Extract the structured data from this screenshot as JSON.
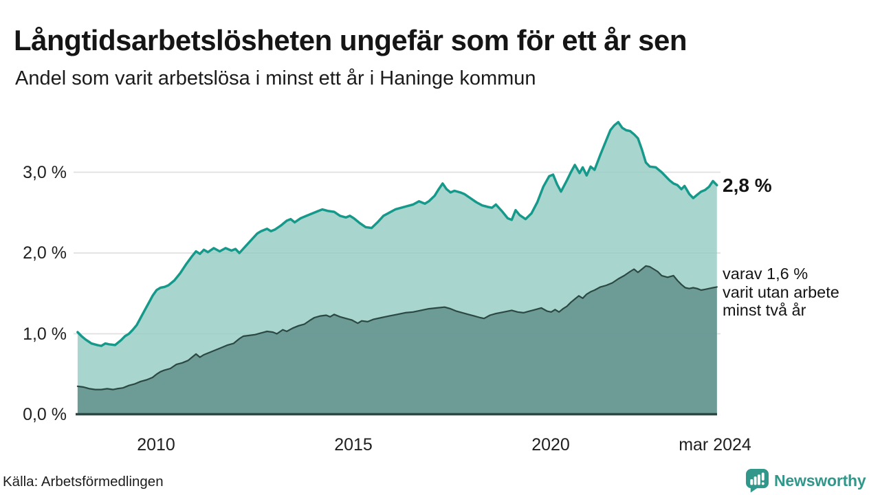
{
  "header": {
    "title": "Långtidsarbetslösheten ungefär som för ett år sen",
    "subtitle": "Andel som varit arbetslösa i minst ett år i Haninge kommun"
  },
  "chart_data": {
    "type": "area",
    "title": "Långtidsarbetslösheten ungefär som för ett år sen",
    "subtitle": "Andel som varit arbetslösa i minst ett år i Haninge kommun",
    "unit": "%",
    "x_range": [
      2008.0,
      2024.2
    ],
    "y_range": [
      0,
      3.7
    ],
    "grid": "horizontal",
    "legend_position": "none",
    "y_axis": {
      "gridline_values": [
        1,
        2,
        3
      ],
      "ticks": [
        {
          "value": 3,
          "label": "3,0 %"
        },
        {
          "value": 2,
          "label": "2,0 %"
        },
        {
          "value": 1,
          "label": "1,0 %"
        },
        {
          "value": 0,
          "label": "0,0 %"
        }
      ]
    },
    "x_axis": {
      "ticks": [
        {
          "year": 2010,
          "label": "2010"
        },
        {
          "year": 2015,
          "label": "2015"
        },
        {
          "year": 2020,
          "label": "2020"
        },
        {
          "year": 2024.2,
          "label": "mar 2024"
        }
      ]
    },
    "annotations": {
      "end_label": "2,8 %",
      "secondary_lines": [
        "varav 1,6 %",
        "varit utan arbete",
        "minst två år"
      ]
    },
    "colors": {
      "line_1yr": "#16998a",
      "area_1yr": "rgba(146,204,194,0.8)",
      "line_2yr": "#2c4843",
      "area_2yr": "rgba(99,145,140,0.85)",
      "baseline": "#2c4843",
      "gridline": "#dfdfdf"
    },
    "series": [
      {
        "name": "arbetslösa minst ett år",
        "end_value_label": "2,8 %",
        "line_color": "#16998a",
        "area_color": "rgba(146,204,194,0.8)",
        "line_width": 3.5,
        "points": [
          [
            2008.0,
            1.02
          ],
          [
            2008.1,
            0.97
          ],
          [
            2008.2,
            0.93
          ],
          [
            2008.35,
            0.88
          ],
          [
            2008.5,
            0.86
          ],
          [
            2008.6,
            0.85
          ],
          [
            2008.7,
            0.88
          ],
          [
            2008.8,
            0.87
          ],
          [
            2008.95,
            0.86
          ],
          [
            2009.1,
            0.92
          ],
          [
            2009.2,
            0.97
          ],
          [
            2009.3,
            1.0
          ],
          [
            2009.4,
            1.05
          ],
          [
            2009.5,
            1.11
          ],
          [
            2009.6,
            1.2
          ],
          [
            2009.7,
            1.29
          ],
          [
            2009.8,
            1.38
          ],
          [
            2009.9,
            1.47
          ],
          [
            2010.0,
            1.54
          ],
          [
            2010.1,
            1.57
          ],
          [
            2010.2,
            1.58
          ],
          [
            2010.3,
            1.6
          ],
          [
            2010.45,
            1.66
          ],
          [
            2010.6,
            1.75
          ],
          [
            2010.75,
            1.86
          ],
          [
            2010.9,
            1.96
          ],
          [
            2011.0,
            2.02
          ],
          [
            2011.1,
            1.99
          ],
          [
            2011.2,
            2.04
          ],
          [
            2011.3,
            2.01
          ],
          [
            2011.45,
            2.06
          ],
          [
            2011.6,
            2.02
          ],
          [
            2011.75,
            2.06
          ],
          [
            2011.9,
            2.03
          ],
          [
            2012.0,
            2.05
          ],
          [
            2012.1,
            2.0
          ],
          [
            2012.25,
            2.08
          ],
          [
            2012.4,
            2.16
          ],
          [
            2012.55,
            2.24
          ],
          [
            2012.65,
            2.27
          ],
          [
            2012.8,
            2.3
          ],
          [
            2012.9,
            2.27
          ],
          [
            2013.0,
            2.29
          ],
          [
            2013.15,
            2.34
          ],
          [
            2013.3,
            2.4
          ],
          [
            2013.4,
            2.42
          ],
          [
            2013.5,
            2.38
          ],
          [
            2013.65,
            2.43
          ],
          [
            2013.8,
            2.46
          ],
          [
            2013.95,
            2.49
          ],
          [
            2014.1,
            2.52
          ],
          [
            2014.2,
            2.54
          ],
          [
            2014.35,
            2.52
          ],
          [
            2014.5,
            2.51
          ],
          [
            2014.65,
            2.46
          ],
          [
            2014.8,
            2.44
          ],
          [
            2014.9,
            2.46
          ],
          [
            2015.0,
            2.43
          ],
          [
            2015.15,
            2.37
          ],
          [
            2015.3,
            2.32
          ],
          [
            2015.45,
            2.31
          ],
          [
            2015.6,
            2.38
          ],
          [
            2015.75,
            2.46
          ],
          [
            2015.9,
            2.5
          ],
          [
            2016.05,
            2.54
          ],
          [
            2016.2,
            2.56
          ],
          [
            2016.35,
            2.58
          ],
          [
            2016.5,
            2.6
          ],
          [
            2016.65,
            2.64
          ],
          [
            2016.8,
            2.61
          ],
          [
            2016.9,
            2.64
          ],
          [
            2017.05,
            2.71
          ],
          [
            2017.15,
            2.79
          ],
          [
            2017.25,
            2.86
          ],
          [
            2017.35,
            2.79
          ],
          [
            2017.45,
            2.75
          ],
          [
            2017.55,
            2.77
          ],
          [
            2017.7,
            2.75
          ],
          [
            2017.8,
            2.73
          ],
          [
            2017.95,
            2.68
          ],
          [
            2018.1,
            2.63
          ],
          [
            2018.25,
            2.59
          ],
          [
            2018.4,
            2.57
          ],
          [
            2018.5,
            2.56
          ],
          [
            2018.6,
            2.6
          ],
          [
            2018.75,
            2.52
          ],
          [
            2018.9,
            2.43
          ],
          [
            2019.0,
            2.41
          ],
          [
            2019.1,
            2.53
          ],
          [
            2019.2,
            2.47
          ],
          [
            2019.35,
            2.42
          ],
          [
            2019.5,
            2.49
          ],
          [
            2019.65,
            2.63
          ],
          [
            2019.8,
            2.82
          ],
          [
            2019.95,
            2.95
          ],
          [
            2020.05,
            2.97
          ],
          [
            2020.15,
            2.85
          ],
          [
            2020.25,
            2.76
          ],
          [
            2020.4,
            2.9
          ],
          [
            2020.5,
            3.0
          ],
          [
            2020.6,
            3.09
          ],
          [
            2020.72,
            2.99
          ],
          [
            2020.8,
            3.06
          ],
          [
            2020.9,
            2.96
          ],
          [
            2021.0,
            3.07
          ],
          [
            2021.1,
            3.03
          ],
          [
            2021.25,
            3.22
          ],
          [
            2021.4,
            3.4
          ],
          [
            2021.5,
            3.52
          ],
          [
            2021.6,
            3.58
          ],
          [
            2021.7,
            3.62
          ],
          [
            2021.8,
            3.55
          ],
          [
            2021.9,
            3.52
          ],
          [
            2022.0,
            3.51
          ],
          [
            2022.1,
            3.47
          ],
          [
            2022.2,
            3.42
          ],
          [
            2022.3,
            3.28
          ],
          [
            2022.4,
            3.12
          ],
          [
            2022.5,
            3.07
          ],
          [
            2022.65,
            3.06
          ],
          [
            2022.8,
            3.0
          ],
          [
            2022.9,
            2.95
          ],
          [
            2023.0,
            2.9
          ],
          [
            2023.1,
            2.86
          ],
          [
            2023.2,
            2.84
          ],
          [
            2023.3,
            2.79
          ],
          [
            2023.38,
            2.83
          ],
          [
            2023.5,
            2.73
          ],
          [
            2023.6,
            2.68
          ],
          [
            2023.7,
            2.72
          ],
          [
            2023.8,
            2.76
          ],
          [
            2023.9,
            2.78
          ],
          [
            2024.0,
            2.82
          ],
          [
            2024.1,
            2.89
          ],
          [
            2024.2,
            2.84
          ]
        ]
      },
      {
        "name": "varav arbetslösa minst två år",
        "end_value_label": "1,6 %",
        "line_color": "#2c4843",
        "area_color": "rgba(99,145,140,0.85)",
        "line_width": 2.2,
        "points": [
          [
            2008.0,
            0.35
          ],
          [
            2008.15,
            0.34
          ],
          [
            2008.3,
            0.32
          ],
          [
            2008.45,
            0.31
          ],
          [
            2008.6,
            0.31
          ],
          [
            2008.75,
            0.32
          ],
          [
            2008.9,
            0.31
          ],
          [
            2009.0,
            0.32
          ],
          [
            2009.15,
            0.33
          ],
          [
            2009.3,
            0.36
          ],
          [
            2009.45,
            0.38
          ],
          [
            2009.6,
            0.41
          ],
          [
            2009.75,
            0.43
          ],
          [
            2009.9,
            0.46
          ],
          [
            2010.0,
            0.5
          ],
          [
            2010.1,
            0.53
          ],
          [
            2010.2,
            0.55
          ],
          [
            2010.35,
            0.57
          ],
          [
            2010.5,
            0.62
          ],
          [
            2010.65,
            0.64
          ],
          [
            2010.8,
            0.67
          ],
          [
            2010.9,
            0.71
          ],
          [
            2011.0,
            0.75
          ],
          [
            2011.1,
            0.71
          ],
          [
            2011.2,
            0.74
          ],
          [
            2011.35,
            0.77
          ],
          [
            2011.5,
            0.8
          ],
          [
            2011.65,
            0.83
          ],
          [
            2011.8,
            0.86
          ],
          [
            2011.95,
            0.88
          ],
          [
            2012.1,
            0.94
          ],
          [
            2012.2,
            0.97
          ],
          [
            2012.35,
            0.98
          ],
          [
            2012.5,
            0.99
          ],
          [
            2012.65,
            1.01
          ],
          [
            2012.8,
            1.03
          ],
          [
            2012.95,
            1.02
          ],
          [
            2013.05,
            1.0
          ],
          [
            2013.2,
            1.05
          ],
          [
            2013.3,
            1.03
          ],
          [
            2013.45,
            1.07
          ],
          [
            2013.6,
            1.1
          ],
          [
            2013.75,
            1.12
          ],
          [
            2013.9,
            1.17
          ],
          [
            2014.0,
            1.2
          ],
          [
            2014.15,
            1.22
          ],
          [
            2014.3,
            1.23
          ],
          [
            2014.4,
            1.21
          ],
          [
            2014.5,
            1.24
          ],
          [
            2014.65,
            1.21
          ],
          [
            2014.8,
            1.19
          ],
          [
            2014.95,
            1.17
          ],
          [
            2015.1,
            1.13
          ],
          [
            2015.2,
            1.16
          ],
          [
            2015.35,
            1.15
          ],
          [
            2015.5,
            1.18
          ],
          [
            2015.7,
            1.2
          ],
          [
            2015.9,
            1.22
          ],
          [
            2016.1,
            1.24
          ],
          [
            2016.3,
            1.26
          ],
          [
            2016.5,
            1.27
          ],
          [
            2016.7,
            1.29
          ],
          [
            2016.9,
            1.31
          ],
          [
            2017.1,
            1.32
          ],
          [
            2017.3,
            1.33
          ],
          [
            2017.45,
            1.31
          ],
          [
            2017.6,
            1.28
          ],
          [
            2017.75,
            1.26
          ],
          [
            2017.9,
            1.24
          ],
          [
            2018.05,
            1.22
          ],
          [
            2018.2,
            1.2
          ],
          [
            2018.3,
            1.19
          ],
          [
            2018.45,
            1.23
          ],
          [
            2018.6,
            1.25
          ],
          [
            2018.8,
            1.27
          ],
          [
            2019.0,
            1.29
          ],
          [
            2019.15,
            1.27
          ],
          [
            2019.3,
            1.26
          ],
          [
            2019.45,
            1.28
          ],
          [
            2019.6,
            1.3
          ],
          [
            2019.75,
            1.32
          ],
          [
            2019.9,
            1.28
          ],
          [
            2020.0,
            1.27
          ],
          [
            2020.1,
            1.3
          ],
          [
            2020.2,
            1.27
          ],
          [
            2020.3,
            1.31
          ],
          [
            2020.4,
            1.34
          ],
          [
            2020.5,
            1.39
          ],
          [
            2020.6,
            1.43
          ],
          [
            2020.7,
            1.47
          ],
          [
            2020.8,
            1.44
          ],
          [
            2020.9,
            1.49
          ],
          [
            2021.0,
            1.52
          ],
          [
            2021.1,
            1.54
          ],
          [
            2021.25,
            1.58
          ],
          [
            2021.4,
            1.6
          ],
          [
            2021.55,
            1.63
          ],
          [
            2021.7,
            1.68
          ],
          [
            2021.85,
            1.72
          ],
          [
            2022.0,
            1.77
          ],
          [
            2022.1,
            1.8
          ],
          [
            2022.2,
            1.76
          ],
          [
            2022.3,
            1.8
          ],
          [
            2022.4,
            1.84
          ],
          [
            2022.5,
            1.83
          ],
          [
            2022.6,
            1.8
          ],
          [
            2022.7,
            1.77
          ],
          [
            2022.8,
            1.72
          ],
          [
            2022.95,
            1.7
          ],
          [
            2023.1,
            1.72
          ],
          [
            2023.2,
            1.66
          ],
          [
            2023.3,
            1.61
          ],
          [
            2023.4,
            1.57
          ],
          [
            2023.5,
            1.56
          ],
          [
            2023.6,
            1.57
          ],
          [
            2023.7,
            1.56
          ],
          [
            2023.8,
            1.54
          ],
          [
            2023.9,
            1.55
          ],
          [
            2024.0,
            1.56
          ],
          [
            2024.1,
            1.57
          ],
          [
            2024.2,
            1.58
          ]
        ]
      }
    ]
  },
  "footer": {
    "source": "Källa: Arbetsförmedlingen",
    "brand": "Newsworthy",
    "brand_color": "#30978a"
  }
}
